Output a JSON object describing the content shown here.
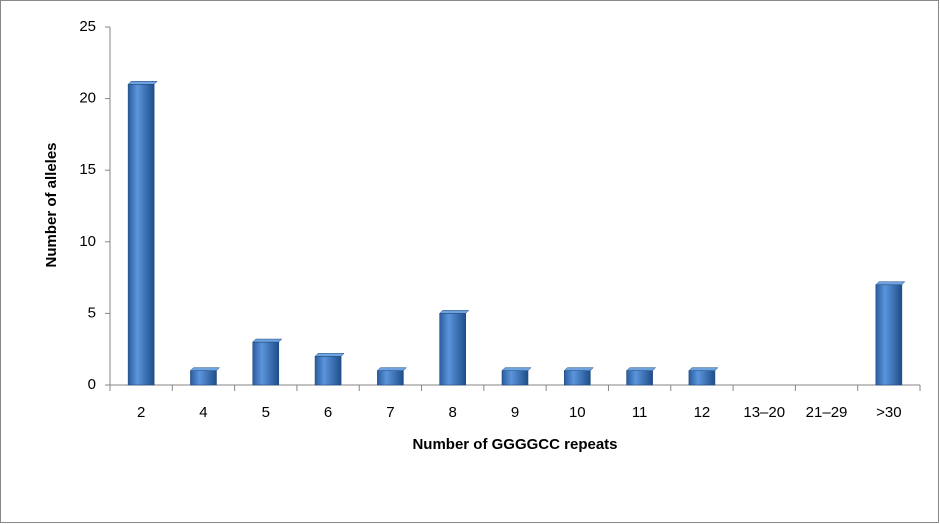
{
  "chart_data": {
    "type": "bar",
    "x_label": "Number of GGGGCC repeats",
    "y_label": "Number of alleles",
    "categories": [
      "2",
      "4",
      "5",
      "6",
      "7",
      "8",
      "9",
      "10",
      "11",
      "12",
      "13–20",
      "21–29",
      ">30"
    ],
    "values": [
      21,
      1,
      3,
      2,
      1,
      5,
      1,
      1,
      1,
      1,
      0,
      0,
      7
    ],
    "color": "#3b78c4",
    "ylim": [
      0,
      25
    ],
    "yticks": [
      0,
      5,
      10,
      15,
      20,
      25
    ],
    "grid": false
  }
}
